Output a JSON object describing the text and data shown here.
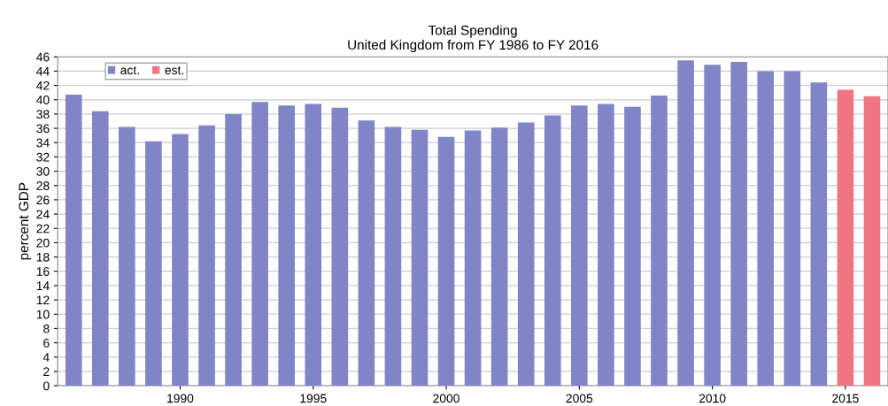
{
  "chart_data": {
    "type": "bar",
    "title": "Total Spending\nUnited Kingdom from FY 1986 to FY 2016",
    "ylabel": "percent GDP",
    "series": [
      {
        "name": "act.",
        "color": "#8085c8",
        "x": [
          1986,
          1987,
          1988,
          1989,
          1990,
          1991,
          1992,
          1993,
          1994,
          1995,
          1996,
          1997,
          1998,
          1999,
          2000,
          2001,
          2002,
          2003,
          2004,
          2005,
          2006,
          2007,
          2008,
          2009,
          2010,
          2011,
          2012,
          2013,
          2014
        ],
        "values": [
          40.7,
          38.4,
          36.2,
          34.2,
          35.2,
          36.4,
          38.0,
          39.7,
          39.2,
          39.4,
          38.9,
          37.1,
          36.2,
          35.8,
          34.8,
          35.7,
          36.1,
          36.8,
          37.8,
          39.2,
          39.4,
          39.0,
          40.6,
          45.5,
          44.9,
          45.3,
          44.0,
          44.0,
          42.4
        ]
      },
      {
        "name": "est.",
        "color": "#f07580",
        "x": [
          2015,
          2016
        ],
        "values": [
          41.4,
          40.5
        ]
      }
    ],
    "xlim": [
      1985.4,
      2016.6
    ],
    "xticks": [
      1990,
      1995,
      2000,
      2005,
      2010,
      2015
    ],
    "ylim": [
      0,
      46
    ],
    "yticks": [
      0,
      2,
      4,
      6,
      8,
      10,
      12,
      14,
      16,
      18,
      20,
      22,
      24,
      26,
      28,
      30,
      32,
      34,
      36,
      38,
      40,
      42,
      44,
      46
    ],
    "grid": "y",
    "legend": "top left"
  }
}
